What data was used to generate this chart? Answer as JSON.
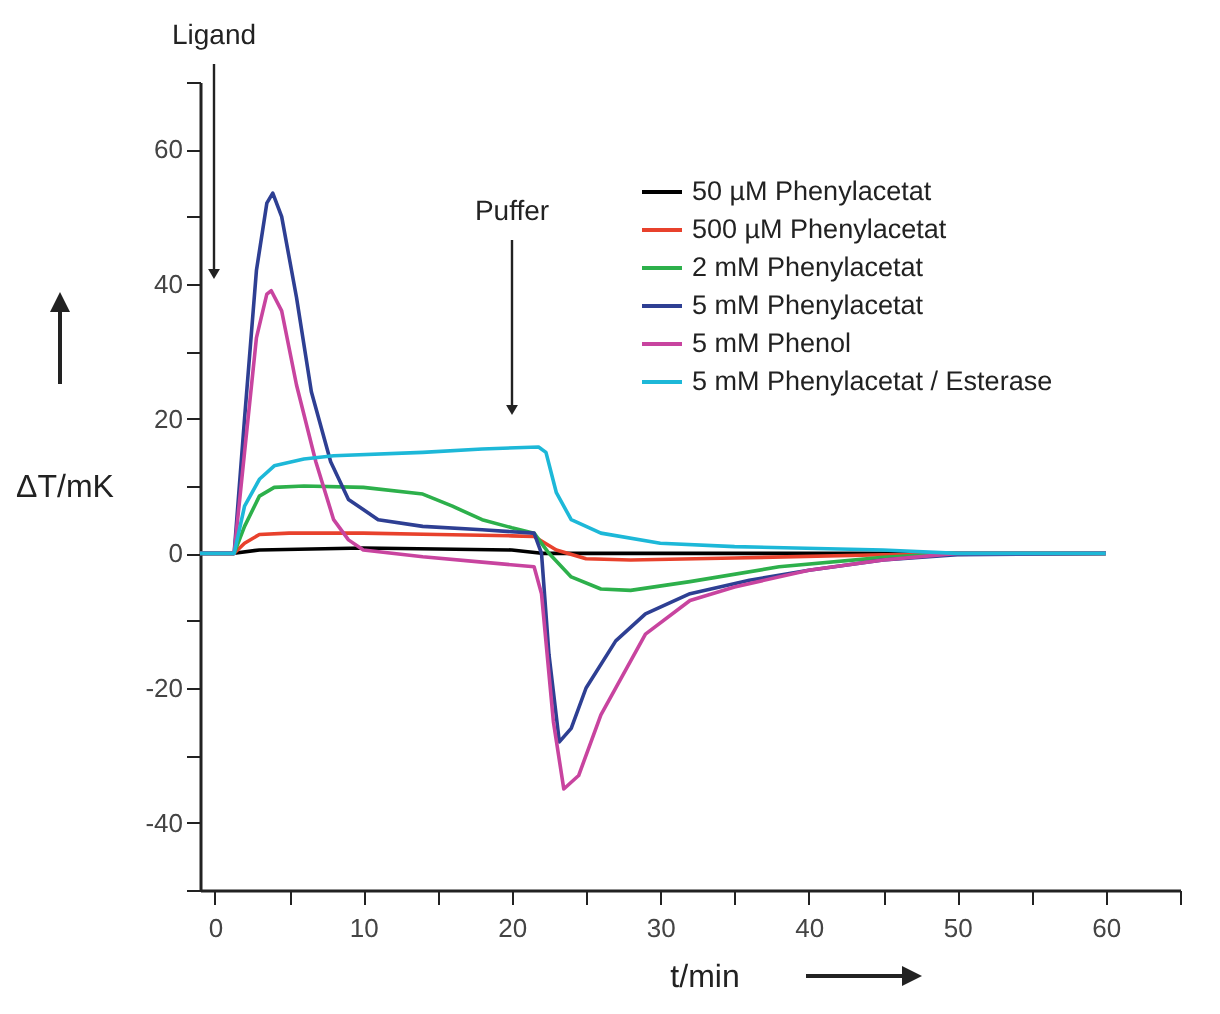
{
  "chart_data": {
    "type": "line",
    "xlabel": "t/min",
    "ylabel": "ΔT/mK",
    "xlim": [
      -1,
      65
    ],
    "ylim": [
      -50,
      70
    ],
    "xticks": [
      0,
      {
        "value": 5,
        "label": null
      },
      10,
      {
        "value": 15,
        "label": null
      },
      20,
      {
        "value": 25,
        "label": null
      },
      30,
      {
        "value": 35,
        "label": null
      },
      40,
      {
        "value": 45,
        "label": null
      },
      50,
      {
        "value": 55,
        "label": null
      },
      60,
      {
        "value": 65,
        "label": null
      }
    ],
    "yticks": [
      {
        "value": -50,
        "label": null
      },
      -40,
      {
        "value": -30,
        "label": null
      },
      -20,
      {
        "value": -10,
        "label": null
      },
      0,
      {
        "value": 10,
        "label": null
      },
      20,
      {
        "value": 30,
        "label": null
      },
      40,
      {
        "value": 50,
        "label": null
      },
      60,
      {
        "value": 70,
        "label": null
      }
    ],
    "grid": false,
    "legend": "top right",
    "annotations": [
      "Ligand",
      "Puffer"
    ],
    "series": [
      {
        "name": "50 µM Phenylacetat",
        "color": "#000000",
        "x": [
          -1,
          1.3,
          3,
          10,
          20,
          22,
          30,
          40,
          60
        ],
        "values": [
          0,
          0,
          0.5,
          0.8,
          0.5,
          0,
          0,
          0,
          0
        ]
      },
      {
        "name": "500 µM Phenylacetat",
        "color": "#e8412c",
        "x": [
          -1,
          1.3,
          2,
          3,
          5,
          10,
          15,
          20,
          21.5,
          23,
          25,
          28,
          35,
          45,
          60
        ],
        "values": [
          0,
          0,
          1.5,
          2.8,
          3,
          3,
          2.8,
          2.6,
          2.5,
          0.5,
          -0.8,
          -1,
          -0.7,
          -0.2,
          0
        ]
      },
      {
        "name": "2 mM Phenylacetat",
        "color": "#2db04b",
        "x": [
          -1,
          1.3,
          2,
          3,
          4,
          6,
          10,
          14,
          16,
          18,
          20,
          21.5,
          22.5,
          24,
          26,
          28,
          32,
          38,
          45,
          50,
          60
        ],
        "values": [
          0,
          0,
          4,
          8.5,
          9.8,
          10,
          9.8,
          8.8,
          7,
          5,
          3.8,
          3,
          0,
          -3.5,
          -5.3,
          -5.5,
          -4.2,
          -2,
          -0.6,
          0,
          0
        ]
      },
      {
        "name": "5 mM Phenylacetat",
        "color": "#2e3f93",
        "x": [
          -1,
          1.3,
          2,
          2.8,
          3.5,
          3.9,
          4.5,
          5.5,
          6.5,
          7.8,
          9,
          11,
          14,
          18,
          21.5,
          22,
          22.5,
          23.2,
          24,
          25,
          27,
          29,
          32,
          36,
          40,
          45,
          50,
          60
        ],
        "values": [
          0,
          0,
          20,
          42,
          52,
          53.5,
          50,
          38,
          24,
          13.6,
          8,
          5,
          4,
          3.5,
          3,
          0,
          -15,
          -28,
          -26,
          -20,
          -13,
          -9,
          -6,
          -4,
          -2.5,
          -1,
          -0.2,
          0
        ]
      },
      {
        "name": "5 mM Phenol",
        "color": "#c8449f",
        "x": [
          -1,
          1.3,
          2,
          2.8,
          3.5,
          3.8,
          4.5,
          5.5,
          6.8,
          8,
          9,
          10,
          14,
          18,
          21.5,
          22,
          22.8,
          23.5,
          24.5,
          26,
          29,
          32,
          35,
          40,
          45,
          50,
          60
        ],
        "values": [
          0,
          0,
          15,
          32,
          38.5,
          39,
          36,
          25,
          13.6,
          5,
          2,
          0.5,
          -0.5,
          -1.3,
          -2,
          -6,
          -25,
          -35,
          -33,
          -24,
          -12,
          -7,
          -5,
          -2.5,
          -1,
          0,
          0
        ]
      },
      {
        "name": "5 mM Phenylacetat / Esterase",
        "color": "#1db8d8",
        "x": [
          -1,
          1.3,
          2,
          3,
          4,
          6,
          8,
          14,
          18,
          21.8,
          22.3,
          23,
          24,
          26,
          30,
          35,
          45,
          50,
          60
        ],
        "values": [
          0,
          0,
          7,
          11,
          13,
          14,
          14.5,
          15,
          15.5,
          15.8,
          15,
          9,
          5,
          3,
          1.5,
          1,
          0.5,
          0,
          0
        ]
      }
    ]
  }
}
